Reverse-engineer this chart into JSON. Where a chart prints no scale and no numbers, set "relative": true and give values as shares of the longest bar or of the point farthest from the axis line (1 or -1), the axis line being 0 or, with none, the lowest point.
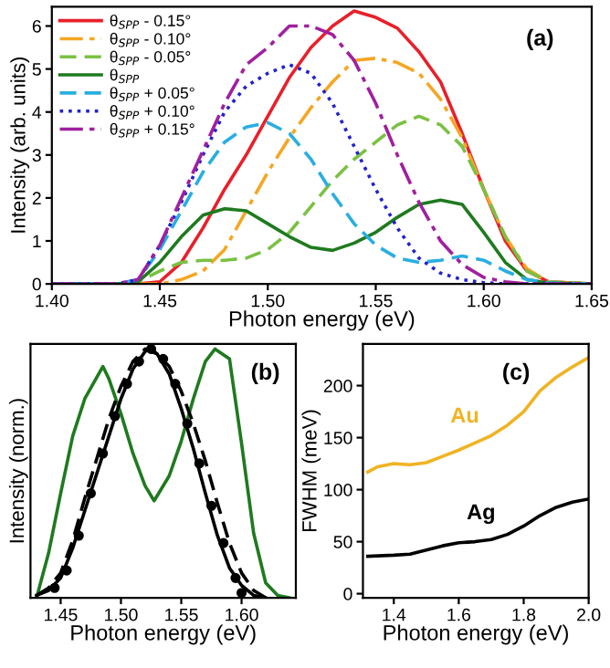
{
  "chart_data": [
    {
      "type": "line",
      "xlabel": "Photon energy (eV)",
      "ylabel": "Intensity (arb. units)",
      "annotations": [
        "(a)"
      ],
      "x": [
        1.4,
        1.43,
        1.44,
        1.45,
        1.46,
        1.47,
        1.48,
        1.49,
        1.5,
        1.51,
        1.52,
        1.53,
        1.54,
        1.55,
        1.56,
        1.57,
        1.58,
        1.59,
        1.6,
        1.61,
        1.62,
        1.63,
        1.65
      ],
      "xlim": [
        1.4,
        1.65
      ],
      "xticks": [
        {
          "value": 1.4,
          "label": "1.40"
        },
        {
          "value": 1.45,
          "label": "1.45"
        },
        {
          "value": 1.5,
          "label": "1.50"
        },
        {
          "value": 1.55,
          "label": "1.55"
        },
        {
          "value": 1.6,
          "label": "1.60"
        },
        {
          "value": 1.65,
          "label": "1.65"
        }
      ],
      "ylim": [
        0,
        6.45
      ],
      "yticks": [
        0,
        1,
        2,
        3,
        4,
        5,
        6
      ],
      "legend": "top left",
      "series": [
        {
          "name": "θ$_{SPP}$ - 0.15°",
          "color": "#e8202a",
          "line_style": "solid",
          "values": [
            0,
            0,
            0,
            0.05,
            0.5,
            1.3,
            2.2,
            3.0,
            3.9,
            4.8,
            5.5,
            6.0,
            6.35,
            6.2,
            5.95,
            5.4,
            4.7,
            3.5,
            2.2,
            1.0,
            0.3,
            0.05,
            0
          ]
        },
        {
          "name": "θ$_{SPP}$ - 0.10°",
          "color": "#f5a623",
          "line_style": "dashdot",
          "values": [
            0,
            0,
            0,
            0,
            0.1,
            0.3,
            0.8,
            1.7,
            2.6,
            3.4,
            4.1,
            4.7,
            5.2,
            5.25,
            5.15,
            4.9,
            4.3,
            3.4,
            2.2,
            1.1,
            0.35,
            0.05,
            0
          ]
        },
        {
          "name": "θ$_{SPP}$ - 0.05°",
          "color": "#7ac143",
          "line_style": "dashed",
          "values": [
            0,
            0,
            0.05,
            0.3,
            0.5,
            0.55,
            0.55,
            0.6,
            0.8,
            1.2,
            1.8,
            2.4,
            2.9,
            3.3,
            3.7,
            3.9,
            3.7,
            3.2,
            2.2,
            1.1,
            0.3,
            0.05,
            0
          ]
        },
        {
          "name": "θ$_{SPP}$",
          "color": "#1f7a1f",
          "line_style": "solid",
          "values": [
            0,
            0,
            0.05,
            0.5,
            1.1,
            1.6,
            1.75,
            1.7,
            1.4,
            1.1,
            0.85,
            0.78,
            0.95,
            1.2,
            1.55,
            1.85,
            1.95,
            1.85,
            1.2,
            0.5,
            0.1,
            0.02,
            0
          ]
        },
        {
          "name": "θ$_{SPP}$ + 0.05°",
          "color": "#29aee0",
          "line_style": "dashed",
          "values": [
            0,
            0,
            0.1,
            0.8,
            1.7,
            2.6,
            3.3,
            3.65,
            3.75,
            3.5,
            2.9,
            2.1,
            1.4,
            0.9,
            0.6,
            0.5,
            0.55,
            0.65,
            0.55,
            0.3,
            0.1,
            0.02,
            0
          ]
        },
        {
          "name": "θ$_{SPP}$ + 0.10°",
          "color": "#2222cc",
          "line_style": "dotted",
          "values": [
            0,
            0,
            0.1,
            0.9,
            1.9,
            3.0,
            4.0,
            4.6,
            4.9,
            5.1,
            4.9,
            4.2,
            3.2,
            2.2,
            1.3,
            0.6,
            0.25,
            0.1,
            0.03,
            0,
            0,
            0,
            0
          ]
        },
        {
          "name": "θ$_{SPP}$ + 0.15°",
          "color": "#a0209f",
          "line_style": "dashdot",
          "values": [
            0,
            0,
            0.1,
            0.9,
            2.0,
            3.1,
            4.2,
            5.1,
            5.5,
            6.0,
            6.0,
            5.8,
            5.2,
            4.2,
            3.0,
            1.9,
            1.0,
            0.45,
            0.15,
            0.05,
            0,
            0,
            0
          ]
        }
      ]
    },
    {
      "type": "line",
      "xlabel": "Photon energy (eV)",
      "ylabel": "Intensity (norm.)",
      "annotations": [
        "(b)"
      ],
      "relative": true,
      "xlim": [
        1.425,
        1.645
      ],
      "xticks": [
        {
          "value": 1.45,
          "label": "1.45"
        },
        {
          "value": 1.5,
          "label": "1.50"
        },
        {
          "value": 1.55,
          "label": "1.55"
        },
        {
          "value": 1.6,
          "label": "1.60"
        }
      ],
      "tick_labels": "x",
      "series": [
        {
          "color": "#1f7a1f",
          "line_style": "solid",
          "x": [
            1.43,
            1.44,
            1.45,
            1.46,
            1.47,
            1.485,
            1.49,
            1.5,
            1.51,
            1.52,
            1.5275,
            1.54,
            1.55,
            1.56,
            1.57,
            1.578,
            1.59,
            1.6,
            1.61,
            1.62,
            1.63,
            1.64
          ],
          "values": [
            0,
            0.18,
            0.42,
            0.65,
            0.8,
            0.93,
            0.88,
            0.74,
            0.58,
            0.45,
            0.39,
            0.49,
            0.63,
            0.8,
            0.95,
            1.0,
            0.96,
            0.62,
            0.26,
            0.06,
            0.01,
            0
          ]
        },
        {
          "color": "#000000",
          "line_style": "dashed",
          "x": [
            1.43,
            1.44,
            1.45,
            1.46,
            1.47,
            1.48,
            1.49,
            1.5,
            1.51,
            1.52,
            1.53,
            1.54,
            1.55,
            1.56,
            1.57,
            1.58,
            1.59,
            1.6,
            1.61,
            1.62
          ],
          "values": [
            0.01,
            0.04,
            0.1,
            0.23,
            0.4,
            0.56,
            0.72,
            0.85,
            0.95,
            1.0,
            0.98,
            0.93,
            0.83,
            0.7,
            0.55,
            0.38,
            0.22,
            0.1,
            0.03,
            0
          ]
        },
        {
          "color": "#000000",
          "line_style": "solid",
          "x": [
            1.43,
            1.44,
            1.45,
            1.46,
            1.47,
            1.48,
            1.49,
            1.5,
            1.51,
            1.52,
            1.525,
            1.53,
            1.54,
            1.55,
            1.56,
            1.57,
            1.58,
            1.59,
            1.6,
            1.61,
            1.62
          ],
          "values": [
            0.01,
            0.03,
            0.08,
            0.2,
            0.35,
            0.5,
            0.65,
            0.8,
            0.92,
            0.99,
            1.0,
            0.98,
            0.9,
            0.76,
            0.6,
            0.42,
            0.25,
            0.12,
            0.05,
            0.01,
            0
          ]
        },
        {
          "type": "scatter",
          "color": "#000000",
          "marker": "circle",
          "x": [
            1.445,
            1.455,
            1.465,
            1.475,
            1.485,
            1.495,
            1.505,
            1.515,
            1.525,
            1.535,
            1.545,
            1.555,
            1.565,
            1.575,
            1.585,
            1.595,
            1.6
          ],
          "values": [
            0.04,
            0.11,
            0.25,
            0.42,
            0.58,
            0.73,
            0.86,
            0.95,
            1.0,
            0.96,
            0.86,
            0.7,
            0.54,
            0.37,
            0.22,
            0.08,
            0.02
          ]
        }
      ]
    },
    {
      "type": "line",
      "xlabel": "Photon energy (eV)",
      "ylabel": "FWHM (meV)",
      "annotations": [
        "(c)"
      ],
      "xlim": [
        1.305,
        2.0
      ],
      "xticks": [
        1.4,
        1.6,
        1.8,
        {
          "value": 2.0,
          "label": "2.0"
        }
      ],
      "ylim": [
        -4,
        240
      ],
      "yticks": [
        0,
        50,
        100,
        150,
        200
      ],
      "series": [
        {
          "name": "Au",
          "color": "#f0b323",
          "line_style": "solid",
          "x": [
            1.32,
            1.35,
            1.4,
            1.45,
            1.5,
            1.55,
            1.6,
            1.65,
            1.7,
            1.75,
            1.8,
            1.85,
            1.9,
            1.95,
            2.0
          ],
          "values": [
            117,
            122,
            125,
            124,
            126,
            132,
            138,
            145,
            152,
            162,
            175,
            195,
            208,
            218,
            227
          ]
        },
        {
          "name": "Ag",
          "color": "#000000",
          "line_style": "solid",
          "x": [
            1.32,
            1.4,
            1.45,
            1.5,
            1.55,
            1.6,
            1.65,
            1.7,
            1.75,
            1.8,
            1.85,
            1.9,
            1.95,
            2.0
          ],
          "values": [
            36,
            37,
            38,
            42,
            46,
            49,
            50,
            52,
            57,
            65,
            75,
            83,
            88,
            91
          ]
        }
      ]
    }
  ]
}
